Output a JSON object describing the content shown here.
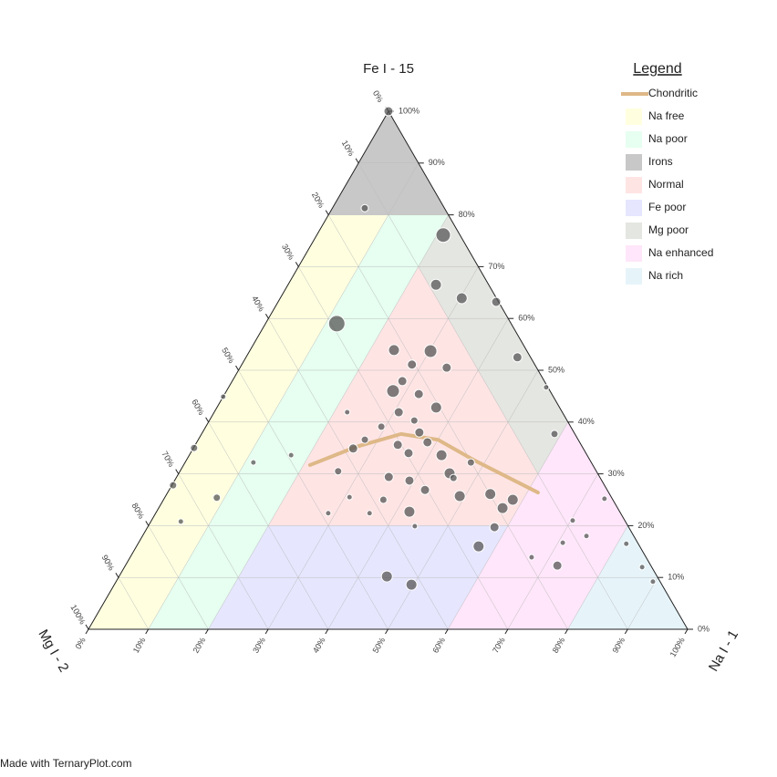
{
  "chart_data": {
    "type": "ternary",
    "top_label": "Fe I - 15",
    "left_label": "Mg I - 2",
    "right_label": "Na I - 1",
    "ticks": [
      {
        "value": 0,
        "label": "0%"
      },
      {
        "value": 10,
        "label": "10%"
      },
      {
        "value": 20,
        "label": "20%"
      },
      {
        "value": 30,
        "label": "30%"
      },
      {
        "value": 40,
        "label": "40%"
      },
      {
        "value": 50,
        "label": "50%"
      },
      {
        "value": 60,
        "label": "60%"
      },
      {
        "value": 70,
        "label": "70%"
      },
      {
        "value": 80,
        "label": "80%"
      },
      {
        "value": 90,
        "label": "90%"
      },
      {
        "value": 100,
        "label": "100%"
      }
    ],
    "grid": true,
    "legend_title": "Legend",
    "curve": {
      "name": "Chondritic",
      "color": "#deb887",
      "fe": [
        31.7,
        35.2,
        37.7,
        36.6,
        32.6,
        26.4
      ],
      "mg": [
        47.2,
        37.8,
        29.0,
        23.4,
        19.3,
        11.8
      ],
      "na": [
        21.1,
        27.0,
        33.3,
        40.0,
        48.1,
        61.8
      ]
    },
    "regions": [
      {
        "name": "Na free",
        "color": "#ffffe0",
        "fe": [
          80,
          0,
          0,
          80
        ],
        "mg": [
          20,
          100,
          90,
          10
        ],
        "na": [
          0,
          0,
          10,
          10
        ]
      },
      {
        "name": "Na poor",
        "color": "#e6fff0",
        "fe": [
          80,
          0,
          0,
          80
        ],
        "mg": [
          10,
          90,
          80,
          0
        ],
        "na": [
          10,
          10,
          20,
          20
        ]
      },
      {
        "name": "Irons",
        "color": "#c8c8c8",
        "fe": [
          100,
          80,
          80
        ],
        "mg": [
          0,
          20,
          0
        ],
        "na": [
          0,
          0,
          20
        ]
      },
      {
        "name": "Normal",
        "color": "#ffe4e4",
        "fe": [
          70,
          20,
          20,
          30
        ],
        "mg": [
          10,
          60,
          20,
          10
        ],
        "na": [
          20,
          20,
          60,
          60
        ]
      },
      {
        "name": "Fe poor",
        "color": "#e6e6ff",
        "fe": [
          20,
          0,
          0,
          20
        ],
        "mg": [
          60,
          80,
          40,
          20
        ],
        "na": [
          20,
          20,
          60,
          60
        ]
      },
      {
        "name": "Mg poor",
        "color": "#e4e6e1",
        "fe": [
          80,
          70,
          30,
          40
        ],
        "mg": [
          0,
          10,
          10,
          0
        ],
        "na": [
          20,
          20,
          60,
          60
        ]
      },
      {
        "name": "Na enhanced",
        "color": "#ffe6fa",
        "fe": [
          40,
          0,
          0,
          20
        ],
        "mg": [
          0,
          40,
          20,
          0
        ],
        "na": [
          60,
          60,
          80,
          80
        ]
      },
      {
        "name": "Na rich",
        "color": "#e6f4fa",
        "fe": [
          20,
          0,
          0
        ],
        "mg": [
          0,
          20,
          0
        ],
        "na": [
          80,
          80,
          100
        ]
      }
    ],
    "points": {
      "color": "#555555",
      "fe": [
        100,
        81.3,
        76.1,
        59,
        66.5,
        63.9,
        63.2,
        52.5,
        46.7,
        37.7,
        53.9,
        53.7,
        51.1,
        47.9,
        46,
        42.8,
        50.5,
        45.4,
        41.9,
        40.3,
        41.9,
        36.6,
        39.1,
        35.6,
        34,
        36.1,
        33.6,
        30.1,
        32.2,
        30.5,
        29.4,
        28.7,
        26.9,
        25.7,
        26.1,
        25,
        23.4,
        19.7,
        22.7,
        25,
        25.5,
        22.4,
        22.4,
        19.9,
        16,
        10.2,
        8.6,
        12.3,
        13.9,
        16.7,
        21,
        25.2,
        18,
        16.5,
        12,
        9.2,
        44.9,
        35,
        27.8,
        25.4,
        20.8,
        32.2,
        33.6,
        34.9,
        38,
        29.2
      ],
      "mg": [
        0,
        13.3,
        2.8,
        29.1,
        8.8,
        5.8,
        0.4,
        2.2,
        0.3,
        3.4,
        22.1,
        16.1,
        20.5,
        23.7,
        26.2,
        20.6,
        15,
        22.2,
        27.3,
        25.5,
        35.9,
        35.6,
        31.6,
        30.6,
        29.6,
        25.4,
        24.3,
        24.7,
        20.1,
        43.1,
        35.2,
        32.1,
        30.4,
        25.2,
        19.9,
        16.7,
        19.2,
        22.4,
        35.1,
        38.3,
        43.7,
        48.8,
        41.9,
        35.6,
        26.9,
        45.1,
        41.8,
        15.6,
        19.1,
        12.5,
        8.7,
        1.3,
        7.9,
        2,
        1.6,
        1.2,
        55.1,
        64.9,
        72,
        65.9,
        74.2,
        56.4,
        49.4,
        38.4,
        25.8,
        24.5
      ],
      "na": [
        0,
        5.4,
        21.1,
        11.9,
        24.7,
        30.3,
        36.4,
        45.3,
        53,
        58.9,
        24,
        30.2,
        28.4,
        28.4,
        27.8,
        36.6,
        34.5,
        32.4,
        30.8,
        34.2,
        22.2,
        27.8,
        29.3,
        33.8,
        36.4,
        38.5,
        42.1,
        45.2,
        47.7,
        26.4,
        35.4,
        39.2,
        42.7,
        49.1,
        54,
        58.3,
        57.4,
        57.9,
        42.2,
        36.7,
        30.8,
        28.8,
        35.7,
        44.5,
        57.1,
        44.7,
        49.6,
        72.1,
        67,
        70.8,
        70.3,
        73.5,
        74.1,
        81.5,
        86.4,
        89.6,
        0,
        0.1,
        0.2,
        8.7,
        5,
        11.4,
        17,
        26.7,
        36.2,
        46.3
      ],
      "size": [
        5,
        4,
        8,
        9,
        6,
        6,
        5,
        5,
        3,
        4,
        6,
        7,
        5,
        5,
        7,
        6,
        5,
        5,
        5,
        4,
        3,
        4,
        4,
        5,
        5,
        5,
        6,
        6,
        4,
        4,
        5,
        5,
        5,
        6,
        6,
        6,
        6,
        5,
        6,
        4,
        3,
        3,
        3,
        3,
        6,
        6,
        6,
        5,
        3,
        3,
        3,
        3,
        3,
        3,
        3,
        3,
        3,
        4,
        4,
        4,
        3,
        3,
        3,
        5,
        5,
        4
      ]
    },
    "footer": "Made with TernaryPlot.com"
  }
}
